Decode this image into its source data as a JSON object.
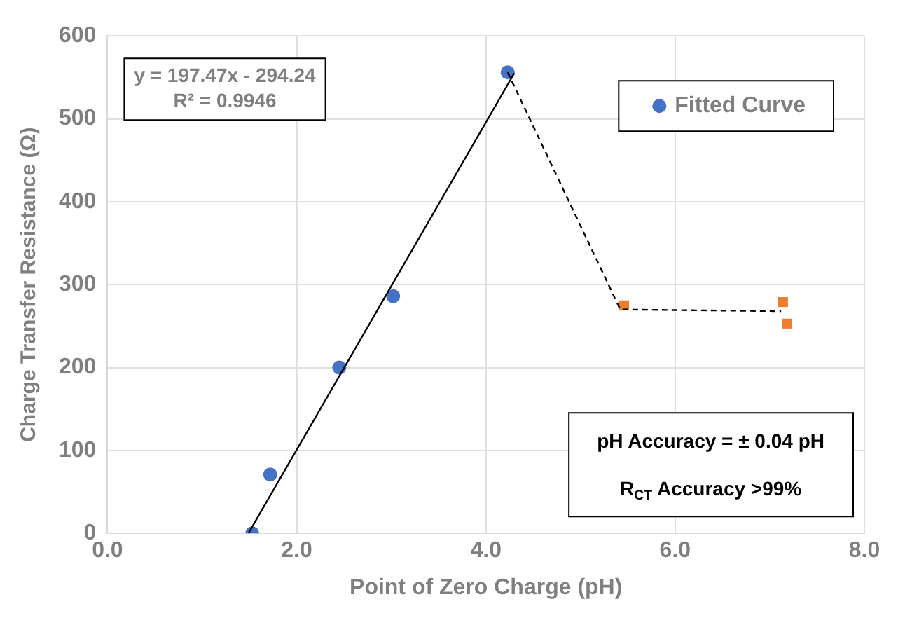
{
  "chart_data": {
    "type": "scatter",
    "xlabel": "Point of Zero Charge (pH)",
    "ylabel": "Charge Transfer Resistance (Ω)",
    "xlim": [
      0,
      8
    ],
    "xticks": [
      {
        "value": 0,
        "label": "0.0"
      },
      {
        "value": 2,
        "label": "2.0"
      },
      {
        "value": 4,
        "label": "4.0"
      },
      {
        "value": 6,
        "label": "6.0"
      },
      {
        "value": 8,
        "label": "8.0"
      }
    ],
    "ylim": [
      0,
      600
    ],
    "yticks": [
      0,
      100,
      200,
      300,
      400,
      500,
      600
    ],
    "grid": true,
    "legend": "top right",
    "series": [
      {
        "type": "line",
        "color": "#000000",
        "marker": "none",
        "line_style": "solid",
        "x": [
          1.49,
          4.3
        ],
        "values": [
          0,
          555
        ]
      },
      {
        "type": "line",
        "color": "#000000",
        "marker": "none",
        "line_style": "dashed",
        "x": [
          4.23,
          5.42,
          7.12
        ],
        "values": [
          556,
          270,
          268
        ]
      },
      {
        "name": "Fitted Curve",
        "type": "scatter",
        "color": "#4472c4",
        "marker": "circle",
        "x": [
          1.53,
          1.72,
          2.45,
          3.02,
          4.23
        ],
        "values": [
          0,
          71,
          200,
          286,
          556
        ]
      },
      {
        "type": "scatter",
        "color": "#ed7d31",
        "marker": "square",
        "x": [
          5.46,
          7.14,
          7.18
        ],
        "values": [
          275,
          279,
          253
        ]
      }
    ],
    "annotations": [
      "y = 197.47x - 294.24",
      "R² = 0.9946",
      "pH Accuracy = ± 0.04 pH",
      "R$_{CT}$ Accuracy >99%"
    ]
  }
}
